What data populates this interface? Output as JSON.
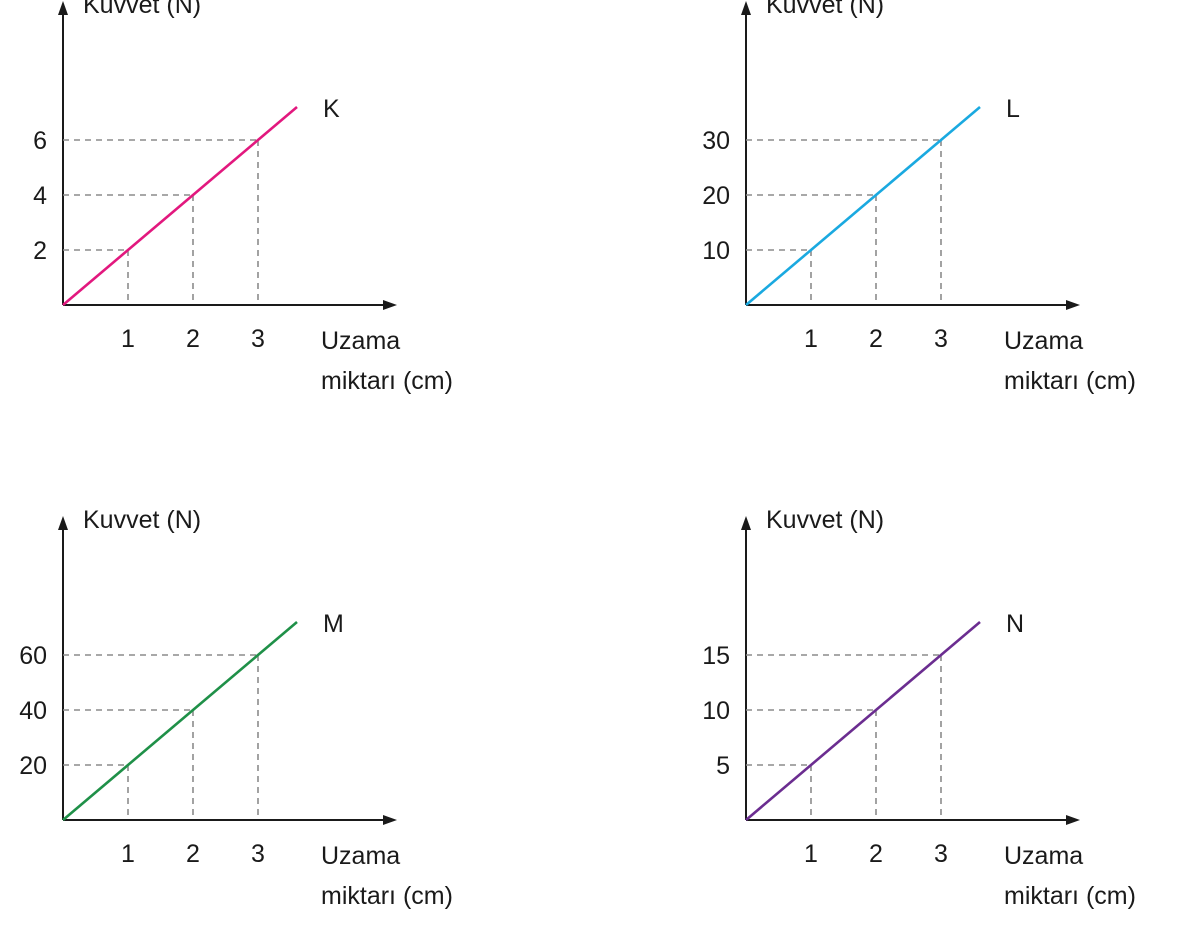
{
  "chart_data": [
    {
      "type": "line",
      "ylabel": "Kuvvet (N)",
      "xlabel": [
        "Uzama",
        "miktarı (cm)"
      ],
      "x_ticks": [
        "1",
        "2",
        "3"
      ],
      "y_ticks": [
        "2",
        "4",
        "6"
      ],
      "xlim": [
        0,
        3.6
      ],
      "ylim": [
        0,
        7.2
      ],
      "series": [
        {
          "name": "K",
          "color": "#e2187e",
          "x": [
            0,
            1,
            2,
            3,
            3.6
          ],
          "y": [
            0,
            2,
            4,
            6,
            7.2
          ]
        }
      ],
      "grid": "dashed guides at 1, 2, 3"
    },
    {
      "type": "line",
      "ylabel": "Kuvvet (N)",
      "xlabel": [
        "Uzama",
        "miktarı (cm)"
      ],
      "x_ticks": [
        "1",
        "2",
        "3"
      ],
      "y_ticks": [
        "10",
        "20",
        "30"
      ],
      "xlim": [
        0,
        3.6
      ],
      "ylim": [
        0,
        36
      ],
      "series": [
        {
          "name": "L",
          "color": "#1aa9e0",
          "x": [
            0,
            1,
            2,
            3,
            3.6
          ],
          "y": [
            0,
            10,
            20,
            30,
            36
          ]
        }
      ],
      "grid": "dashed guides at 1, 2, 3"
    },
    {
      "type": "line",
      "ylabel": "Kuvvet (N)",
      "xlabel": [
        "Uzama",
        "miktarı (cm)"
      ],
      "x_ticks": [
        "1",
        "2",
        "3"
      ],
      "y_ticks": [
        "20",
        "40",
        "60"
      ],
      "xlim": [
        0,
        3.6
      ],
      "ylim": [
        0,
        72
      ],
      "series": [
        {
          "name": "M",
          "color": "#1f9048",
          "x": [
            0,
            1,
            2,
            3,
            3.6
          ],
          "y": [
            0,
            20,
            40,
            60,
            72
          ]
        }
      ],
      "grid": "dashed guides at 1, 2, 3"
    },
    {
      "type": "line",
      "ylabel": "Kuvvet (N)",
      "xlabel": [
        "Uzama",
        "miktarı (cm)"
      ],
      "x_ticks": [
        "1",
        "2",
        "3"
      ],
      "y_ticks": [
        "5",
        "10",
        "15"
      ],
      "xlim": [
        0,
        3.6
      ],
      "ylim": [
        0,
        18
      ],
      "series": [
        {
          "name": "N",
          "color": "#6b2d90",
          "x": [
            0,
            1,
            2,
            3,
            3.6
          ],
          "y": [
            0,
            5,
            10,
            15,
            18
          ]
        }
      ],
      "grid": "dashed guides at 1, 2, 3"
    }
  ]
}
